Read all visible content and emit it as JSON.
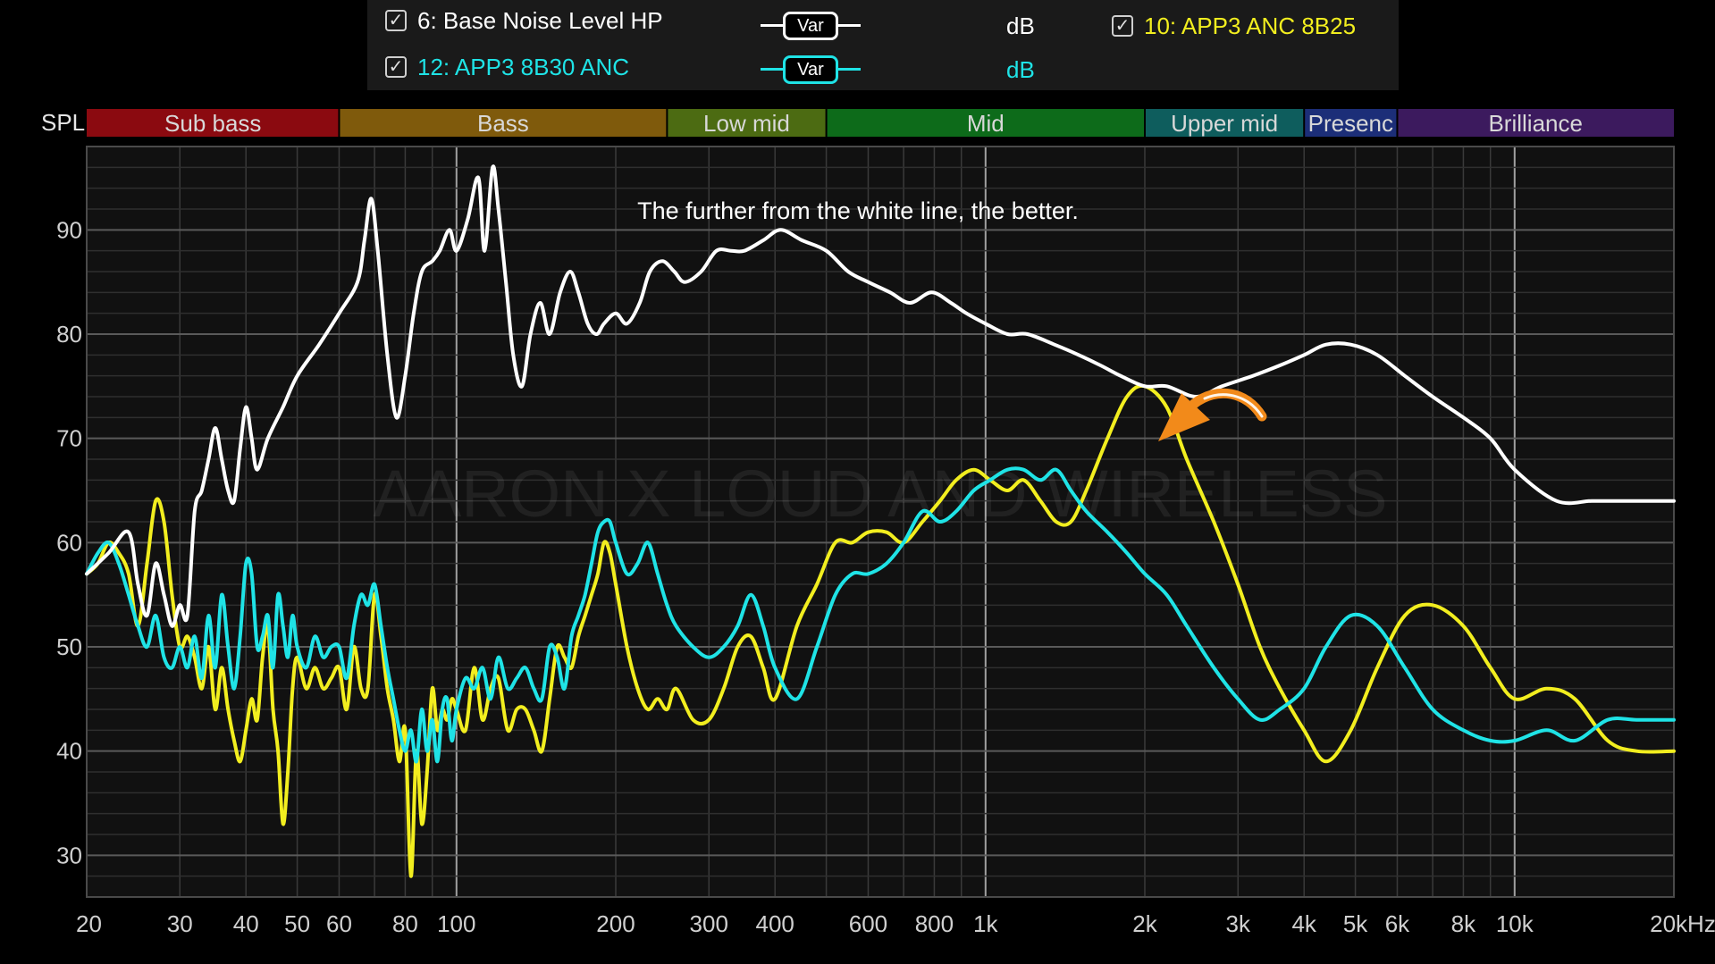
{
  "legend": {
    "items": [
      {
        "checked": true,
        "label": "6: Base Noise Level HP",
        "unit": "dB",
        "button": "Var",
        "color": "#ffffff"
      },
      {
        "checked": true,
        "label": "12: APP3 8B30 ANC",
        "unit": "dB",
        "button": "Var",
        "color": "#1fe3e6"
      },
      {
        "checked": true,
        "label": "10: APP3 ANC 8B25",
        "color": "#f2ee1f"
      }
    ],
    "check_glyph": "✓"
  },
  "bands": [
    {
      "label": "Sub bass",
      "from": 20,
      "to": 60,
      "color": "#8b0a10"
    },
    {
      "label": "Bass",
      "from": 60,
      "to": 250,
      "color": "#7f5a0c"
    },
    {
      "label": "Low mid",
      "from": 250,
      "to": 500,
      "color": "#4c6b12"
    },
    {
      "label": "Mid",
      "from": 500,
      "to": 2000,
      "color": "#0d6b1a"
    },
    {
      "label": "Upper mid",
      "from": 2000,
      "to": 4000,
      "color": "#0e5d5d"
    },
    {
      "label": "Presenc",
      "from": 4000,
      "to": 6000,
      "color": "#1c2e78"
    },
    {
      "label": "Brilliance",
      "from": 6000,
      "to": 20000,
      "color": "#3c1a5e"
    }
  ],
  "annotation": "The further from the white line, the better.",
  "watermark": "AARON X LOUD AND WIRELESS",
  "arrow_icon": "curved-arrow-icon",
  "arrow_color": "#f28a1a",
  "chart_data": {
    "type": "line",
    "ylabel": "SPL",
    "xscale": "log",
    "xlim": [
      20,
      20000
    ],
    "ylim": [
      26,
      98
    ],
    "grid": true,
    "yticks": [
      30,
      40,
      50,
      60,
      70,
      80,
      90
    ],
    "xticks": [
      {
        "v": 20,
        "label": "20"
      },
      {
        "v": 30,
        "label": "30"
      },
      {
        "v": 40,
        "label": "40"
      },
      {
        "v": 50,
        "label": "50"
      },
      {
        "v": 60,
        "label": "60"
      },
      {
        "v": 80,
        "label": "80"
      },
      {
        "v": 100,
        "label": "100"
      },
      {
        "v": 200,
        "label": "200"
      },
      {
        "v": 300,
        "label": "300"
      },
      {
        "v": 400,
        "label": "400"
      },
      {
        "v": 600,
        "label": "600"
      },
      {
        "v": 800,
        "label": "800"
      },
      {
        "v": 1000,
        "label": "1k"
      },
      {
        "v": 2000,
        "label": "2k"
      },
      {
        "v": 3000,
        "label": "3k"
      },
      {
        "v": 4000,
        "label": "4k"
      },
      {
        "v": 5000,
        "label": "5k"
      },
      {
        "v": 6000,
        "label": "6k"
      },
      {
        "v": 8000,
        "label": "8k"
      },
      {
        "v": 10000,
        "label": "10k"
      },
      {
        "v": 20000,
        "label": "20kHz"
      }
    ],
    "series": [
      {
        "name": "6: Base Noise Level HP",
        "color": "#ffffff",
        "x": [
          20,
          22,
          24,
          25,
          26,
          27,
          28,
          29,
          30,
          31,
          32,
          33,
          34,
          35,
          36,
          37,
          38,
          39,
          40,
          41,
          42,
          44,
          47,
          50,
          55,
          60,
          65,
          67,
          69,
          71,
          74,
          77,
          80,
          83,
          86,
          90,
          93,
          97,
          100,
          105,
          110,
          113,
          117,
          120,
          124,
          128,
          133,
          138,
          144,
          150,
          157,
          164,
          170,
          177,
          184,
          190,
          200,
          210,
          222,
          232,
          245,
          258,
          270,
          290,
          310,
          330,
          350,
          380,
          410,
          450,
          500,
          550,
          600,
          660,
          720,
          790,
          860,
          920,
          1000,
          1100,
          1200,
          1350,
          1500,
          1650,
          1800,
          2000,
          2200,
          2500,
          2800,
          3200,
          3600,
          4000,
          4400,
          4900,
          5500,
          6200,
          7000,
          8000,
          9000,
          10000,
          12000,
          14000,
          16000,
          20000
        ],
        "y": [
          57,
          59,
          61,
          56,
          53,
          58,
          55,
          52,
          54,
          53,
          63,
          65,
          68,
          71,
          68,
          65,
          64,
          69,
          73,
          70,
          67,
          70,
          73,
          76,
          79,
          82,
          85,
          89,
          93,
          88,
          78,
          72,
          76,
          82,
          86,
          87,
          88,
          90,
          88,
          91,
          95,
          88,
          96,
          92,
          85,
          78,
          75,
          80,
          83,
          80,
          84,
          86,
          84,
          81,
          80,
          81,
          82,
          81,
          83,
          86,
          87,
          86,
          85,
          86,
          88,
          88,
          88,
          89,
          90,
          89,
          88,
          86,
          85,
          84,
          83,
          84,
          83,
          82,
          81,
          80,
          80,
          79,
          78,
          77,
          76,
          75,
          75,
          74,
          75,
          76,
          77,
          78,
          79,
          79,
          78,
          76,
          74,
          72,
          70,
          67,
          64,
          64,
          64,
          64
        ]
      },
      {
        "name": "12: APP3 8B30 ANC",
        "color": "#1fe3e6",
        "x": [
          20,
          21,
          22,
          23,
          24,
          25,
          26,
          27,
          28,
          29,
          30,
          31,
          32,
          33,
          34,
          35,
          36,
          37,
          38,
          39,
          40,
          41,
          42,
          43,
          44,
          45,
          46,
          47,
          48,
          49,
          50,
          52,
          54,
          56,
          58,
          60,
          62,
          64,
          66,
          68,
          70,
          72,
          74,
          76,
          78,
          80,
          82,
          84,
          86,
          88,
          90,
          92,
          94,
          96,
          98,
          100,
          104,
          108,
          112,
          116,
          120,
          125,
          130,
          135,
          140,
          145,
          150,
          155,
          160,
          165,
          170,
          175,
          180,
          185,
          190,
          195,
          200,
          210,
          220,
          230,
          240,
          250,
          260,
          280,
          300,
          320,
          340,
          360,
          380,
          400,
          440,
          480,
          520,
          560,
          600,
          650,
          700,
          760,
          820,
          880,
          950,
          1020,
          1100,
          1180,
          1270,
          1360,
          1450,
          1550,
          1700,
          1850,
          2000,
          2200,
          2400,
          2700,
          3000,
          3300,
          3600,
          4000,
          4400,
          4900,
          5500,
          6200,
          7000,
          8000,
          9000,
          10000,
          11500,
          13000,
          15000,
          17000,
          20000
        ],
        "y": [
          57,
          59,
          60,
          58,
          55,
          52,
          50,
          53,
          49,
          48,
          50,
          48,
          51,
          47,
          53,
          48,
          55,
          50,
          46,
          51,
          58,
          57,
          50,
          51,
          53,
          48,
          55,
          52,
          49,
          53,
          50,
          48,
          51,
          49,
          50,
          50,
          47,
          52,
          55,
          54,
          56,
          52,
          48,
          45,
          42,
          40,
          42,
          39,
          44,
          40,
          43,
          39,
          44,
          45,
          41,
          44,
          47,
          46,
          48,
          45,
          49,
          46,
          47,
          48,
          46,
          45,
          50,
          49,
          46,
          51,
          53,
          55,
          58,
          61,
          62,
          62,
          60,
          57,
          58,
          60,
          57,
          54,
          52,
          50,
          49,
          50,
          52,
          55,
          52,
          48,
          45,
          50,
          55,
          57,
          57,
          58,
          60,
          63,
          62,
          63,
          65,
          66,
          67,
          67,
          66,
          67,
          65,
          63,
          61,
          59,
          57,
          55,
          52,
          48,
          45,
          43,
          44,
          46,
          50,
          53,
          52,
          48,
          44,
          42,
          41,
          41,
          42,
          41,
          43,
          43,
          43
        ]
      },
      {
        "name": "10: APP3 ANC 8B25",
        "color": "#f2ee1f",
        "x": [
          20,
          21,
          22,
          23,
          24,
          25,
          26,
          27,
          28,
          29,
          30,
          31,
          32,
          33,
          34,
          35,
          36,
          37,
          38,
          39,
          40,
          41,
          42,
          43,
          44,
          45,
          46,
          47,
          48,
          49,
          50,
          52,
          54,
          56,
          58,
          60,
          62,
          64,
          66,
          68,
          70,
          72,
          74,
          76,
          78,
          80,
          82,
          84,
          86,
          88,
          90,
          92,
          94,
          96,
          98,
          100,
          104,
          108,
          112,
          116,
          120,
          125,
          130,
          135,
          140,
          145,
          150,
          155,
          160,
          165,
          170,
          175,
          180,
          185,
          190,
          195,
          200,
          210,
          220,
          230,
          240,
          250,
          260,
          280,
          300,
          320,
          340,
          360,
          380,
          400,
          440,
          480,
          520,
          560,
          600,
          650,
          700,
          760,
          820,
          880,
          950,
          1020,
          1100,
          1180,
          1270,
          1360,
          1450,
          1550,
          1700,
          1850,
          2000,
          2200,
          2400,
          2700,
          3000,
          3300,
          3600,
          4000,
          4400,
          4900,
          5500,
          6200,
          7000,
          8000,
          9000,
          10000,
          11500,
          13000,
          15000,
          17000,
          20000
        ],
        "y": [
          57,
          58,
          60,
          59,
          57,
          52,
          58,
          64,
          62,
          55,
          50,
          51,
          49,
          46,
          50,
          44,
          48,
          44,
          41,
          39,
          42,
          45,
          43,
          49,
          52,
          44,
          40,
          33,
          38,
          46,
          49,
          46,
          48,
          46,
          47,
          48,
          44,
          50,
          46,
          46,
          55,
          51,
          46,
          43,
          39,
          42,
          28,
          40,
          33,
          38,
          46,
          42,
          44,
          43,
          45,
          44,
          42,
          48,
          43,
          46,
          47,
          42,
          44,
          44,
          42,
          40,
          45,
          50,
          49,
          48,
          51,
          53,
          55,
          57,
          60,
          59,
          56,
          50,
          46,
          44,
          45,
          44,
          46,
          43,
          43,
          46,
          50,
          51,
          48,
          45,
          52,
          56,
          60,
          60,
          61,
          61,
          60,
          62,
          64,
          66,
          67,
          66,
          65,
          66,
          64,
          62,
          62,
          65,
          70,
          74,
          75,
          73,
          68,
          62,
          56,
          50,
          46,
          42,
          39,
          42,
          48,
          53,
          54,
          52,
          48,
          45,
          46,
          45,
          41,
          40,
          40
        ]
      }
    ]
  }
}
